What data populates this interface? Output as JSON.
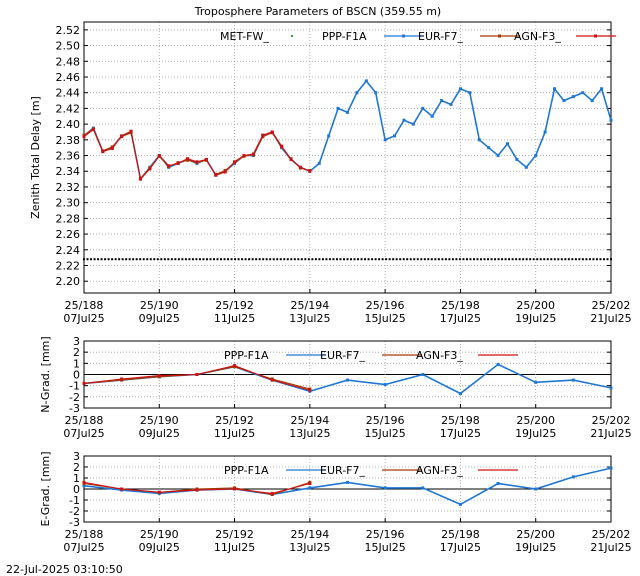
{
  "title": "Troposphere Parameters of BSCN (359.55 m)",
  "timestamp": "22-Jul-2025 03:10:50",
  "x_ticks": [
    {
      "top": "25/188",
      "bottom": "07Jul25"
    },
    {
      "top": "25/190",
      "bottom": "09Jul25"
    },
    {
      "top": "25/192",
      "bottom": "11Jul25"
    },
    {
      "top": "25/194",
      "bottom": "13Jul25"
    },
    {
      "top": "25/196",
      "bottom": "15Jul25"
    },
    {
      "top": "25/198",
      "bottom": "17Jul25"
    },
    {
      "top": "25/200",
      "bottom": "19Jul25"
    },
    {
      "top": "25/202",
      "bottom": "21Jul25"
    }
  ],
  "colors": {
    "met": "#22aa22",
    "ppp": "#1f77d4",
    "eur": "#a33a00",
    "agn": "#d01010"
  },
  "chart_data": [
    {
      "type": "line",
      "ylabel": "Zenith Total Delay [m]",
      "xlim": [
        "2025-07-07",
        "2025-07-21"
      ],
      "ylim": [
        2.185,
        2.53
      ],
      "yticks": [
        "2.20",
        "2.22",
        "2.24",
        "2.26",
        "2.28",
        "2.30",
        "2.32",
        "2.34",
        "2.36",
        "2.38",
        "2.40",
        "2.42",
        "2.44",
        "2.46",
        "2.48",
        "2.50",
        "2.52"
      ],
      "grid": true,
      "legend_position": "top",
      "series": [
        {
          "name": "MET-FW_",
          "style": "dots",
          "x": [
            "2025-07-07",
            "2025-07-21"
          ],
          "values": [
            2.228,
            2.228
          ]
        },
        {
          "name": "PPP-F1A",
          "style": "line-points",
          "x": [
            "2025-07-07 00:00",
            "2025-07-07 06:00",
            "2025-07-07 12:00",
            "2025-07-07 18:00",
            "2025-07-08 00:00",
            "2025-07-08 06:00",
            "2025-07-08 12:00",
            "2025-07-08 18:00",
            "2025-07-09 00:00",
            "2025-07-09 06:00",
            "2025-07-09 12:00",
            "2025-07-09 18:00",
            "2025-07-10 00:00",
            "2025-07-10 06:00",
            "2025-07-10 12:00",
            "2025-07-10 18:00",
            "2025-07-11 00:00",
            "2025-07-11 06:00",
            "2025-07-11 12:00",
            "2025-07-11 18:00",
            "2025-07-12 00:00",
            "2025-07-12 06:00",
            "2025-07-12 12:00",
            "2025-07-12 18:00",
            "2025-07-13 00:00",
            "2025-07-13 06:00",
            "2025-07-13 12:00",
            "2025-07-13 18:00",
            "2025-07-14 00:00",
            "2025-07-14 06:00",
            "2025-07-14 12:00",
            "2025-07-14 18:00",
            "2025-07-15 00:00",
            "2025-07-15 06:00",
            "2025-07-15 12:00",
            "2025-07-15 18:00",
            "2025-07-16 00:00",
            "2025-07-16 06:00",
            "2025-07-16 12:00",
            "2025-07-16 18:00",
            "2025-07-17 00:00",
            "2025-07-17 06:00",
            "2025-07-17 12:00",
            "2025-07-17 18:00",
            "2025-07-18 00:00",
            "2025-07-18 06:00",
            "2025-07-18 12:00",
            "2025-07-18 18:00",
            "2025-07-19 00:00",
            "2025-07-19 06:00",
            "2025-07-19 12:00",
            "2025-07-19 18:00",
            "2025-07-20 00:00",
            "2025-07-20 06:00",
            "2025-07-20 12:00",
            "2025-07-20 18:00",
            "2025-07-21 00:00"
          ],
          "values": [
            2.385,
            2.395,
            2.365,
            2.37,
            2.385,
            2.39,
            2.33,
            2.345,
            2.36,
            2.345,
            2.35,
            2.355,
            2.35,
            2.355,
            2.335,
            2.34,
            2.35,
            2.36,
            2.36,
            2.385,
            2.39,
            2.37,
            2.355,
            2.345,
            2.34,
            2.35,
            2.385,
            2.42,
            2.415,
            2.44,
            2.455,
            2.44,
            2.38,
            2.385,
            2.405,
            2.4,
            2.42,
            2.41,
            2.43,
            2.425,
            2.445,
            2.44,
            2.38,
            2.37,
            2.36,
            2.375,
            2.355,
            2.345,
            2.36,
            2.39,
            2.445,
            2.43,
            2.435,
            2.44,
            2.43,
            2.445,
            2.405
          ]
        },
        {
          "name": "EUR-F7_",
          "style": "line-points",
          "x": [
            "2025-07-07 00:00",
            "2025-07-07 06:00",
            "2025-07-07 12:00",
            "2025-07-07 18:00",
            "2025-07-08 00:00",
            "2025-07-08 06:00",
            "2025-07-08 12:00",
            "2025-07-08 18:00",
            "2025-07-09 00:00",
            "2025-07-09 06:00",
            "2025-07-09 12:00",
            "2025-07-09 18:00",
            "2025-07-10 00:00",
            "2025-07-10 06:00",
            "2025-07-10 12:00",
            "2025-07-10 18:00",
            "2025-07-11 00:00",
            "2025-07-11 06:00",
            "2025-07-11 12:00",
            "2025-07-11 18:00",
            "2025-07-12 00:00",
            "2025-07-12 06:00",
            "2025-07-12 12:00",
            "2025-07-12 18:00",
            "2025-07-13 00:00"
          ],
          "values": [
            2.386,
            2.394,
            2.366,
            2.371,
            2.384,
            2.389,
            2.331,
            2.344,
            2.359,
            2.346,
            2.351,
            2.354,
            2.351,
            2.354,
            2.336,
            2.341,
            2.351,
            2.359,
            2.361,
            2.384,
            2.389,
            2.371,
            2.356,
            2.344,
            2.341
          ]
        },
        {
          "name": "AGN-F3_",
          "style": "line-points",
          "x": [
            "2025-07-07 00:00",
            "2025-07-07 06:00",
            "2025-07-07 12:00",
            "2025-07-07 18:00",
            "2025-07-08 00:00",
            "2025-07-08 06:00",
            "2025-07-08 12:00",
            "2025-07-08 18:00",
            "2025-07-09 00:00",
            "2025-07-09 06:00",
            "2025-07-09 12:00",
            "2025-07-09 18:00",
            "2025-07-10 00:00",
            "2025-07-10 06:00",
            "2025-07-10 12:00",
            "2025-07-10 18:00",
            "2025-07-11 00:00",
            "2025-07-11 06:00",
            "2025-07-11 12:00",
            "2025-07-11 18:00",
            "2025-07-12 00:00",
            "2025-07-12 06:00",
            "2025-07-12 12:00",
            "2025-07-12 18:00",
            "2025-07-13 00:00"
          ],
          "values": [
            2.384,
            2.393,
            2.365,
            2.369,
            2.385,
            2.391,
            2.33,
            2.343,
            2.36,
            2.347,
            2.35,
            2.356,
            2.352,
            2.355,
            2.335,
            2.339,
            2.352,
            2.36,
            2.362,
            2.386,
            2.39,
            2.372,
            2.355,
            2.345,
            2.34
          ]
        }
      ]
    },
    {
      "type": "line",
      "ylabel": "N-Grad. [mm]",
      "xlim": [
        "2025-07-07",
        "2025-07-21"
      ],
      "ylim": [
        -3,
        3
      ],
      "yticks": [
        "-3",
        "-2",
        "-1",
        "0",
        "1",
        "2",
        "3"
      ],
      "grid": true,
      "legend_position": "top",
      "series": [
        {
          "name": "PPP-F1A",
          "x": [
            "2025-07-07",
            "2025-07-08",
            "2025-07-09",
            "2025-07-10",
            "2025-07-11",
            "2025-07-12",
            "2025-07-13",
            "2025-07-14",
            "2025-07-15",
            "2025-07-16",
            "2025-07-17",
            "2025-07-18",
            "2025-07-19",
            "2025-07-20",
            "2025-07-21"
          ],
          "values": [
            -0.8,
            -0.5,
            -0.2,
            0.0,
            0.7,
            -0.5,
            -1.5,
            -0.5,
            -0.9,
            0.0,
            -1.7,
            0.9,
            -0.7,
            -0.5,
            -1.2
          ]
        },
        {
          "name": "EUR-F7_",
          "x": [
            "2025-07-07",
            "2025-07-08",
            "2025-07-09",
            "2025-07-10",
            "2025-07-11",
            "2025-07-12",
            "2025-07-13"
          ],
          "values": [
            -0.8,
            -0.5,
            -0.2,
            0.0,
            0.7,
            -0.4,
            -1.3
          ]
        },
        {
          "name": "AGN-F3_",
          "x": [
            "2025-07-07",
            "2025-07-08",
            "2025-07-09",
            "2025-07-10",
            "2025-07-11",
            "2025-07-12",
            "2025-07-13"
          ],
          "values": [
            -0.8,
            -0.4,
            -0.1,
            0.0,
            0.8,
            -0.5,
            -1.4
          ]
        }
      ]
    },
    {
      "type": "line",
      "ylabel": "E-Grad. [mm]",
      "xlim": [
        "2025-07-07",
        "2025-07-21"
      ],
      "ylim": [
        -3,
        3
      ],
      "yticks": [
        "-3",
        "-2",
        "-1",
        "0",
        "1",
        "2",
        "3"
      ],
      "grid": true,
      "legend_position": "top",
      "series": [
        {
          "name": "PPP-F1A",
          "x": [
            "2025-07-07",
            "2025-07-08",
            "2025-07-09",
            "2025-07-10",
            "2025-07-11",
            "2025-07-12",
            "2025-07-13",
            "2025-07-14",
            "2025-07-15",
            "2025-07-16",
            "2025-07-17",
            "2025-07-18",
            "2025-07-19",
            "2025-07-20",
            "2025-07-21"
          ],
          "values": [
            0.3,
            -0.1,
            -0.4,
            -0.1,
            0.0,
            -0.5,
            0.1,
            0.6,
            0.1,
            0.1,
            -1.4,
            0.5,
            0.0,
            1.1,
            1.9
          ]
        },
        {
          "name": "EUR-F7_",
          "x": [
            "2025-07-07",
            "2025-07-08",
            "2025-07-09",
            "2025-07-10",
            "2025-07-11",
            "2025-07-12",
            "2025-07-13"
          ],
          "values": [
            0.5,
            0.0,
            -0.3,
            0.0,
            0.1,
            -0.5,
            0.6
          ]
        },
        {
          "name": "AGN-F3_",
          "x": [
            "2025-07-07",
            "2025-07-08",
            "2025-07-09",
            "2025-07-10",
            "2025-07-11",
            "2025-07-12",
            "2025-07-13"
          ],
          "values": [
            0.6,
            0.0,
            -0.3,
            -0.1,
            0.0,
            -0.4,
            0.5
          ]
        }
      ]
    }
  ]
}
